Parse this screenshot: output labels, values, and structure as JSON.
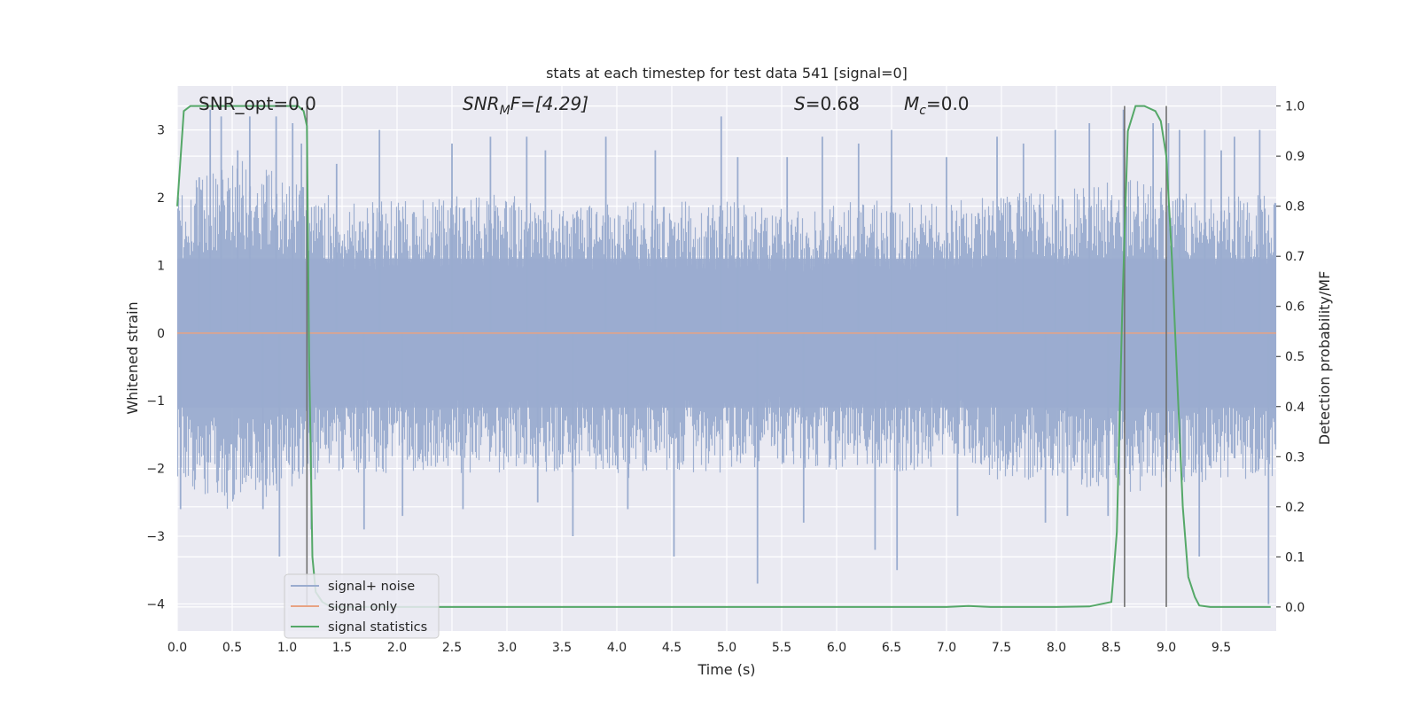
{
  "chart_data": {
    "type": "line",
    "title": "stats at each timestep for test data 541 [signal=0]",
    "xlabel": "Time (s)",
    "ylabel": "Whitened strain",
    "y2label": "Detection probability/MF",
    "xlim": [
      0.0,
      10.0
    ],
    "ylim": [
      -4.4,
      3.65
    ],
    "y2lim": [
      -0.048,
      1.04
    ],
    "x_ticks": [
      "0.0",
      "0.5",
      "1.0",
      "1.5",
      "2.0",
      "2.5",
      "3.0",
      "3.5",
      "4.0",
      "4.5",
      "5.0",
      "5.5",
      "6.0",
      "6.5",
      "7.0",
      "7.5",
      "8.0",
      "8.5",
      "9.0",
      "9.5"
    ],
    "y_ticks": [
      "3",
      "2",
      "1",
      "0",
      "−1",
      "−2",
      "−3",
      "−4"
    ],
    "y2_ticks": [
      "1.0",
      "0.9",
      "0.8",
      "0.7",
      "0.6",
      "0.5",
      "0.4",
      "0.3",
      "0.2",
      "0.1",
      "0.0"
    ],
    "grid": true,
    "annotations": {
      "snr_opt": "SNR_opt=0.0",
      "snr_mf_sym": "SNR",
      "snr_mf_sub": "M",
      "snr_mf_rest": "F=[4.29]",
      "s_sym": "S",
      "s_val": "=0.68",
      "mc_sym": "M",
      "mc_sub": "c",
      "mc_val": "=0.0"
    },
    "legend_position": "lower-left",
    "series": [
      {
        "name": "signal+ noise",
        "color": "#9aaccf",
        "axis": "left",
        "description_of_shape": "dense noise band",
        "band_envelope": {
          "x": [
            0.0,
            0.5,
            1.0,
            1.5,
            2.0,
            2.5,
            3.0,
            3.5,
            4.0,
            4.5,
            5.0,
            5.5,
            6.0,
            6.5,
            7.0,
            7.5,
            8.0,
            8.5,
            9.0,
            9.5,
            10.0
          ],
          "upper": [
            1.8,
            2.3,
            2.0,
            1.7,
            1.7,
            1.8,
            1.8,
            1.6,
            1.7,
            1.7,
            1.7,
            1.6,
            1.7,
            1.7,
            1.7,
            1.8,
            1.8,
            2.0,
            1.9,
            1.8,
            1.8
          ],
          "lower": [
            -1.9,
            -2.3,
            -2.0,
            -1.8,
            -1.8,
            -1.8,
            -1.8,
            -1.8,
            -1.9,
            -1.8,
            -1.8,
            -1.7,
            -1.8,
            -1.8,
            -1.7,
            -1.9,
            -1.9,
            -2.1,
            -2.0,
            -1.9,
            -1.9
          ]
        },
        "spikes": [
          [
            0.03,
            -2.6
          ],
          [
            0.2,
            2.3
          ],
          [
            0.3,
            3.3
          ],
          [
            0.4,
            3.2
          ],
          [
            0.55,
            2.7
          ],
          [
            0.66,
            3.2
          ],
          [
            0.78,
            -2.6
          ],
          [
            0.9,
            3.2
          ],
          [
            0.93,
            -3.3
          ],
          [
            1.05,
            3.1
          ],
          [
            1.13,
            2.8
          ],
          [
            1.22,
            -2.9
          ],
          [
            1.45,
            2.5
          ],
          [
            1.7,
            -2.9
          ],
          [
            1.84,
            3.0
          ],
          [
            2.05,
            -2.7
          ],
          [
            2.5,
            2.8
          ],
          [
            2.6,
            -2.6
          ],
          [
            2.85,
            2.9
          ],
          [
            3.18,
            2.9
          ],
          [
            3.28,
            -2.5
          ],
          [
            3.35,
            2.7
          ],
          [
            3.6,
            -3.0
          ],
          [
            3.9,
            2.9
          ],
          [
            4.1,
            -2.6
          ],
          [
            4.35,
            2.7
          ],
          [
            4.52,
            -3.3
          ],
          [
            4.95,
            3.2
          ],
          [
            5.1,
            2.6
          ],
          [
            5.28,
            -3.7
          ],
          [
            5.55,
            2.6
          ],
          [
            5.7,
            -2.8
          ],
          [
            5.87,
            2.9
          ],
          [
            6.2,
            2.8
          ],
          [
            6.35,
            -3.2
          ],
          [
            6.5,
            3.0
          ],
          [
            6.55,
            -3.5
          ],
          [
            7.0,
            2.6
          ],
          [
            7.1,
            -2.7
          ],
          [
            7.46,
            2.9
          ],
          [
            7.7,
            2.8
          ],
          [
            7.9,
            -2.8
          ],
          [
            7.99,
            3.0
          ],
          [
            8.1,
            -2.7
          ],
          [
            8.3,
            3.1
          ],
          [
            8.47,
            -2.7
          ],
          [
            8.61,
            3.3
          ],
          [
            8.88,
            3.1
          ],
          [
            9.02,
            3.1
          ],
          [
            9.12,
            3.0
          ],
          [
            9.3,
            -3.3
          ],
          [
            9.35,
            3.0
          ],
          [
            9.5,
            2.7
          ],
          [
            9.62,
            2.9
          ],
          [
            9.85,
            3.0
          ],
          [
            9.93,
            -4.0
          ]
        ]
      },
      {
        "name": "signal only",
        "color": "#e8a383",
        "axis": "left",
        "x": [
          0.0,
          10.0
        ],
        "y": [
          0.0,
          0.0
        ]
      },
      {
        "name": "signal statistics",
        "color": "#55a868",
        "axis": "right",
        "x": [
          0.0,
          0.06,
          0.12,
          0.5,
          1.0,
          1.1,
          1.15,
          1.18,
          1.2,
          1.23,
          1.26,
          1.32,
          1.4,
          2.0,
          3.0,
          4.0,
          5.0,
          6.0,
          6.8,
          7.0,
          7.2,
          7.4,
          8.0,
          8.3,
          8.5,
          8.55,
          8.6,
          8.65,
          8.72,
          8.8,
          8.9,
          8.95,
          9.0,
          9.05,
          9.1,
          9.15,
          9.2,
          9.26,
          9.3,
          9.4,
          9.5,
          9.95
        ],
        "y": [
          0.8,
          0.99,
          1.0,
          1.0,
          1.0,
          1.0,
          0.99,
          0.96,
          0.5,
          0.1,
          0.03,
          0.01,
          0.0,
          0.0,
          0.0,
          0.0,
          0.0,
          0.0,
          0.0,
          0.0,
          0.002,
          0.0,
          0.0,
          0.001,
          0.01,
          0.15,
          0.6,
          0.95,
          1.0,
          1.0,
          0.99,
          0.97,
          0.9,
          0.7,
          0.45,
          0.2,
          0.06,
          0.02,
          0.003,
          0.0,
          0.0,
          0.0
        ]
      }
    ],
    "vertical_markers": [
      1.18,
      8.62,
      9.0
    ],
    "vertical_marker_color": "#707070",
    "colors": {
      "axes_bg": "#eaeaf2",
      "grid": "#ffffff"
    }
  }
}
